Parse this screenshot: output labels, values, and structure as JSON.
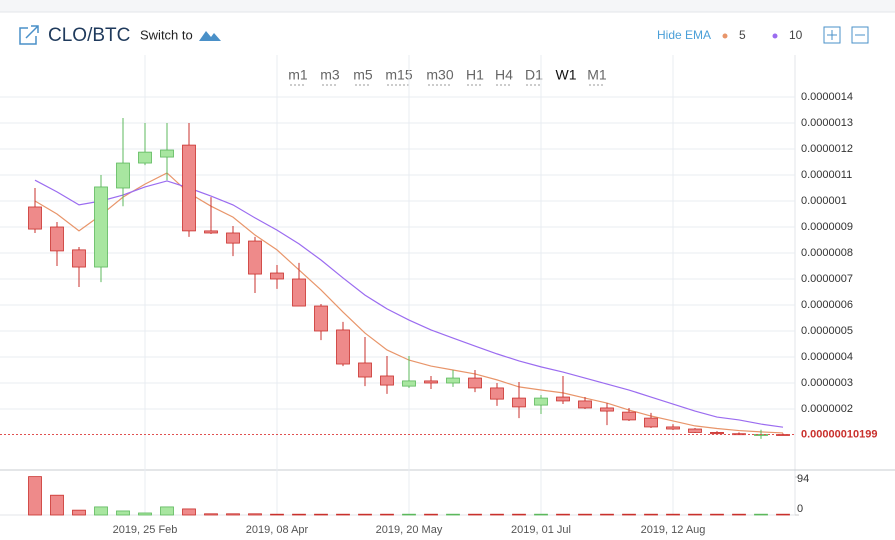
{
  "header": {
    "symbol": "CLO/BTC",
    "switch": "Switch to",
    "toggle": "Hide EMA"
  },
  "toolbar": {
    "timeframes": [
      "m1",
      "m3",
      "m5",
      "m15",
      "m30",
      "H1",
      "H4",
      "D1",
      "W1",
      "M1"
    ],
    "active": "W1"
  },
  "chart_data": {
    "type": "candlestick",
    "categories": [
      null,
      null,
      null,
      null,
      null,
      "2019, 25 Feb",
      null,
      null,
      null,
      null,
      null,
      "2019, 08 Apr",
      null,
      null,
      null,
      null,
      null,
      "2019, 20 May",
      null,
      null,
      null,
      null,
      null,
      "2019, 01 Jul",
      null,
      null,
      null,
      null,
      null,
      "2019, 12 Aug",
      null,
      null,
      null,
      null,
      null
    ],
    "open": [
      9.77e-07,
      9e-07,
      8.12e-07,
      7.46e-07,
      1.05e-06,
      1.146e-06,
      1.169e-06,
      1.215e-06,
      8.85e-07,
      8.77e-07,
      8.46e-07,
      7.23e-07,
      7e-07,
      5.96e-07,
      5.04e-07,
      3.77e-07,
      3.27e-07,
      2.88e-07,
      3.08e-07,
      3e-07,
      3.19e-07,
      2.81e-07,
      2.42e-07,
      2.15e-07,
      2.46e-07,
      2.31e-07,
      2.04e-07,
      1.88e-07,
      1.65e-07,
      1.31e-07,
      1.23e-07,
      1.1e-07,
      1.05e-07,
      1e-07,
      1.02e-07
    ],
    "high": [
      1.05e-06,
      9.19e-07,
      8.23e-07,
      1.1e-06,
      1.319e-06,
      1.3e-06,
      1.3e-06,
      1.3e-06,
      1.015e-06,
      9.04e-07,
      8.62e-07,
      7.54e-07,
      7.62e-07,
      6.04e-07,
      5.35e-07,
      4.77e-07,
      4.04e-07,
      4.04e-07,
      3.27e-07,
      3.5e-07,
      3.5e-07,
      3e-07,
      3.04e-07,
      2.54e-07,
      3.27e-07,
      2.46e-07,
      2.23e-07,
      2.04e-07,
      1.85e-07,
      1.42e-07,
      1.27e-07,
      1.15e-07,
      1.1e-07,
      1.2e-07,
      1.06e-07
    ],
    "low": [
      8.77e-07,
      7.5e-07,
      6.69e-07,
      6.88e-07,
      9.8e-07,
      1.138e-06,
      1.08e-06,
      8.62e-07,
      8.73e-07,
      7.88e-07,
      6.46e-07,
      6.62e-07,
      5.96e-07,
      4.65e-07,
      3.65e-07,
      2.88e-07,
      2.58e-07,
      2.81e-07,
      2.77e-07,
      2.85e-07,
      2.65e-07,
      2.12e-07,
      1.65e-07,
      1.81e-07,
      2.19e-07,
      2e-07,
      1.38e-07,
      1.54e-07,
      1.27e-07,
      1.19e-07,
      1.08e-07,
      1.03e-07,
      1e-07,
      8.5e-08,
      9.8e-08
    ],
    "close": [
      8.92e-07,
      8.08e-07,
      7.46e-07,
      1.054e-06,
      1.146e-06,
      1.188e-06,
      1.196e-06,
      8.85e-07,
      8.77e-07,
      8.38e-07,
      7.19e-07,
      7e-07,
      5.96e-07,
      5e-07,
      3.73e-07,
      3.23e-07,
      2.92e-07,
      3.08e-07,
      3e-07,
      3.19e-07,
      2.81e-07,
      2.38e-07,
      2.08e-07,
      2.42e-07,
      2.31e-07,
      2.04e-07,
      1.92e-07,
      1.58e-07,
      1.31e-07,
      1.23e-07,
      1.1e-07,
      1.05e-07,
      1.02e-07,
      1.02e-07,
      1.0199e-07
    ],
    "up_color": "#a8e6a0",
    "down_color": "#ee8a8a",
    "up_edge": "#5cb85c",
    "down_edge": "#c9302c",
    "series": [
      {
        "name": "5",
        "color": "#e8956a",
        "values": [
          1e-06,
          9.5e-07,
          8.85e-07,
          9.46e-07,
          1.015e-06,
          1.065e-06,
          1.108e-06,
          1.03e-06,
          9.8e-07,
          9.38e-07,
          8.69e-07,
          8.12e-07,
          7.35e-07,
          6.58e-07,
          5.73e-07,
          4.92e-07,
          4.27e-07,
          3.88e-07,
          3.65e-07,
          3.5e-07,
          3.35e-07,
          3.12e-07,
          2.85e-07,
          2.73e-07,
          2.62e-07,
          2.42e-07,
          2.23e-07,
          1.96e-07,
          1.73e-07,
          1.54e-07,
          1.35e-07,
          1.25e-07,
          1.17e-07,
          1.12e-07,
          1.08e-07
        ]
      },
      {
        "name": "10",
        "color": "#9b6cf0",
        "values": [
          1.08e-06,
          1.035e-06,
          9.85e-07,
          1e-06,
          1.023e-06,
          1.054e-06,
          1.077e-06,
          1.05e-06,
          1.019e-06,
          9.85e-07,
          9.35e-07,
          8.88e-07,
          8.35e-07,
          7.73e-07,
          7.04e-07,
          6.38e-07,
          5.85e-07,
          5.42e-07,
          5.04e-07,
          4.73e-07,
          4.42e-07,
          4.12e-07,
          3.85e-07,
          3.62e-07,
          3.42e-07,
          3.19e-07,
          2.96e-07,
          2.73e-07,
          2.46e-07,
          2.19e-07,
          1.92e-07,
          1.69e-07,
          1.58e-07,
          1.42e-07,
          1.3e-07
        ]
      }
    ],
    "ylim": [
      0,
      1.5e-06
    ],
    "yticks": [
      1.4e-06,
      1.3e-06,
      1.2e-06,
      1.1e-06,
      1e-06,
      {
        "value": 9e-07,
        "label": "0.0000009"
      },
      {
        "value": 8e-07,
        "label": "0.0000008"
      },
      {
        "value": 7e-07,
        "label": "0.0000007"
      },
      {
        "value": 6e-07,
        "label": "0.0000006"
      },
      {
        "value": 5e-07,
        "label": "0.0000005"
      },
      {
        "value": 4e-07,
        "label": "0.0000004"
      },
      {
        "value": 3e-07,
        "label": "0.0000003"
      },
      {
        "value": 2e-07,
        "label": "0.0000002"
      }
    ],
    "current_price": {
      "value": 1.0199e-07,
      "label": "0.00000010199"
    },
    "volume": [
      95,
      49,
      12,
      20,
      10,
      5,
      20,
      15,
      3,
      3,
      3,
      2,
      2,
      2,
      2,
      2,
      2,
      2,
      2,
      2,
      2,
      2,
      2,
      2,
      2,
      2,
      2,
      2,
      2,
      2,
      2,
      2,
      2,
      2,
      2
    ],
    "vlim": [
      0,
      100
    ],
    "vticks": [
      94,
      0
    ],
    "grid": true
  }
}
